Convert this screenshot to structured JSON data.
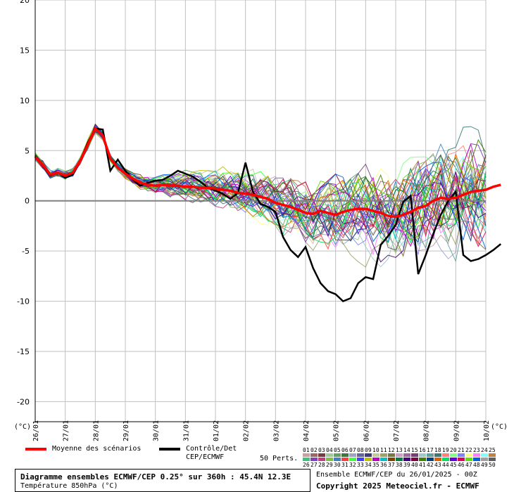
{
  "chart_data": {
    "type": "line",
    "ylim": [
      -22,
      20
    ],
    "yticks": [
      20,
      15,
      10,
      5,
      0,
      -5,
      -10,
      -15,
      -20
    ],
    "x_range_hours": [
      0,
      360
    ],
    "x_step_hours": 6,
    "xtick_labels": [
      "26/01",
      "27/01",
      "28/01",
      "29/01",
      "30/01",
      "31/01",
      "01/02",
      "02/02",
      "03/02",
      "04/02",
      "05/02",
      "06/02",
      "07/02",
      "08/02",
      "09/02",
      "10/02"
    ],
    "unit_label_left": "(°C)",
    "unit_label_right": "(°C)",
    "grid": true,
    "mean_series": {
      "name": "Moyenne des scénarios",
      "color": "#ff0000",
      "values": [
        4.4,
        3.6,
        2.6,
        2.8,
        2.5,
        2.8,
        4.0,
        5.6,
        7.2,
        6.5,
        4.2,
        3.3,
        2.7,
        2.2,
        1.8,
        1.6,
        1.5,
        1.6,
        1.5,
        1.5,
        1.4,
        1.4,
        1.3,
        1.3,
        1.2,
        1.1,
        1.0,
        0.8,
        0.7,
        0.6,
        0.4,
        0.2,
        -0.2,
        -0.4,
        -0.6,
        -0.9,
        -1.2,
        -1.3,
        -1.0,
        -1.2,
        -1.4,
        -1.1,
        -0.9,
        -0.8,
        -0.8,
        -1.0,
        -1.2,
        -1.5,
        -1.6,
        -1.4,
        -1.1,
        -0.7,
        -0.5,
        0.0,
        0.3,
        0.2,
        0.3,
        0.6,
        0.9,
        1.0,
        1.1,
        1.4,
        1.6
      ]
    },
    "control_series": {
      "name": "Contrôle/Det CEP/ECMWF",
      "color": "#000000",
      "values": [
        4.5,
        3.5,
        2.5,
        2.8,
        2.3,
        2.6,
        4.0,
        5.8,
        7.2,
        7.1,
        3.0,
        4.1,
        3.0,
        2.1,
        1.5,
        1.8,
        2.0,
        2.1,
        2.5,
        3.0,
        2.7,
        2.4,
        1.9,
        1.3,
        1.0,
        0.7,
        0.2,
        0.8,
        3.8,
        0.9,
        -0.3,
        -0.6,
        -1.1,
        -3.6,
        -4.9,
        -5.6,
        -4.6,
        -6.7,
        -8.2,
        -9.0,
        -9.3,
        -10.0,
        -9.7,
        -8.2,
        -7.6,
        -7.8,
        -4.4,
        -3.5,
        -2.4,
        -0.1,
        0.5,
        -7.3,
        -5.4,
        -3.3,
        -1.4,
        0.0,
        0.9,
        -5.4,
        -6.0,
        -5.8,
        -5.4,
        -4.9,
        -4.3
      ]
    },
    "ensemble": {
      "name": "50 Perts.",
      "count": 50,
      "member_labels": [
        "01",
        "02",
        "03",
        "04",
        "05",
        "06",
        "07",
        "08",
        "09",
        "10",
        "11",
        "12",
        "13",
        "14",
        "15",
        "16",
        "17",
        "18",
        "19",
        "20",
        "21",
        "22",
        "23",
        "24",
        "25",
        "26",
        "27",
        "28",
        "29",
        "30",
        "31",
        "32",
        "33",
        "34",
        "35",
        "36",
        "37",
        "38",
        "39",
        "40",
        "41",
        "42",
        "43",
        "44",
        "45",
        "46",
        "47",
        "48",
        "49",
        "50"
      ],
      "member_colors": [
        "#c8a0a0",
        "#a06464",
        "#783c3c",
        "#a0c8a0",
        "#64a064",
        "#3c783c",
        "#a0a0c8",
        "#6464a0",
        "#3c3c78",
        "#c8c8a0",
        "#a0a064",
        "#78783c",
        "#c8a0c8",
        "#a064a0",
        "#783c78",
        "#a0c8c8",
        "#64a0a0",
        "#3c7878",
        "#ff8080",
        "#80ff80",
        "#8080ff",
        "#ffff80",
        "#ff80ff",
        "#80ffff",
        "#c08040",
        "#40c080",
        "#8040c0",
        "#c04080",
        "#80c040",
        "#4080c0",
        "#ff4040",
        "#40ff40",
        "#4040ff",
        "#c0c000",
        "#c000c0",
        "#00c0c0",
        "#804000",
        "#008040",
        "#400080",
        "#800040",
        "#408000",
        "#004080",
        "#e06000",
        "#00e060",
        "#6000e0",
        "#e00060",
        "#60e000",
        "#0060e0",
        "#a0a0a0",
        "#606060"
      ]
    }
  },
  "legend": {
    "mean_label": "Moyenne des scénarios",
    "control_label_1": "Contrôle/Det",
    "control_label_2": "CEP/ECMWF",
    "perts_label": "50 Perts."
  },
  "title": {
    "main": "Diagramme ensembles ECMWF/CEP 0.25° sur 360h : 45.4N 12.3E",
    "sub": "Température 850hPa (°C)",
    "run": "Ensemble ECMWF/CEP du 26/01/2025 - 00Z",
    "copyright": "Copyright 2025 Meteociel.fr - ECMWF"
  }
}
